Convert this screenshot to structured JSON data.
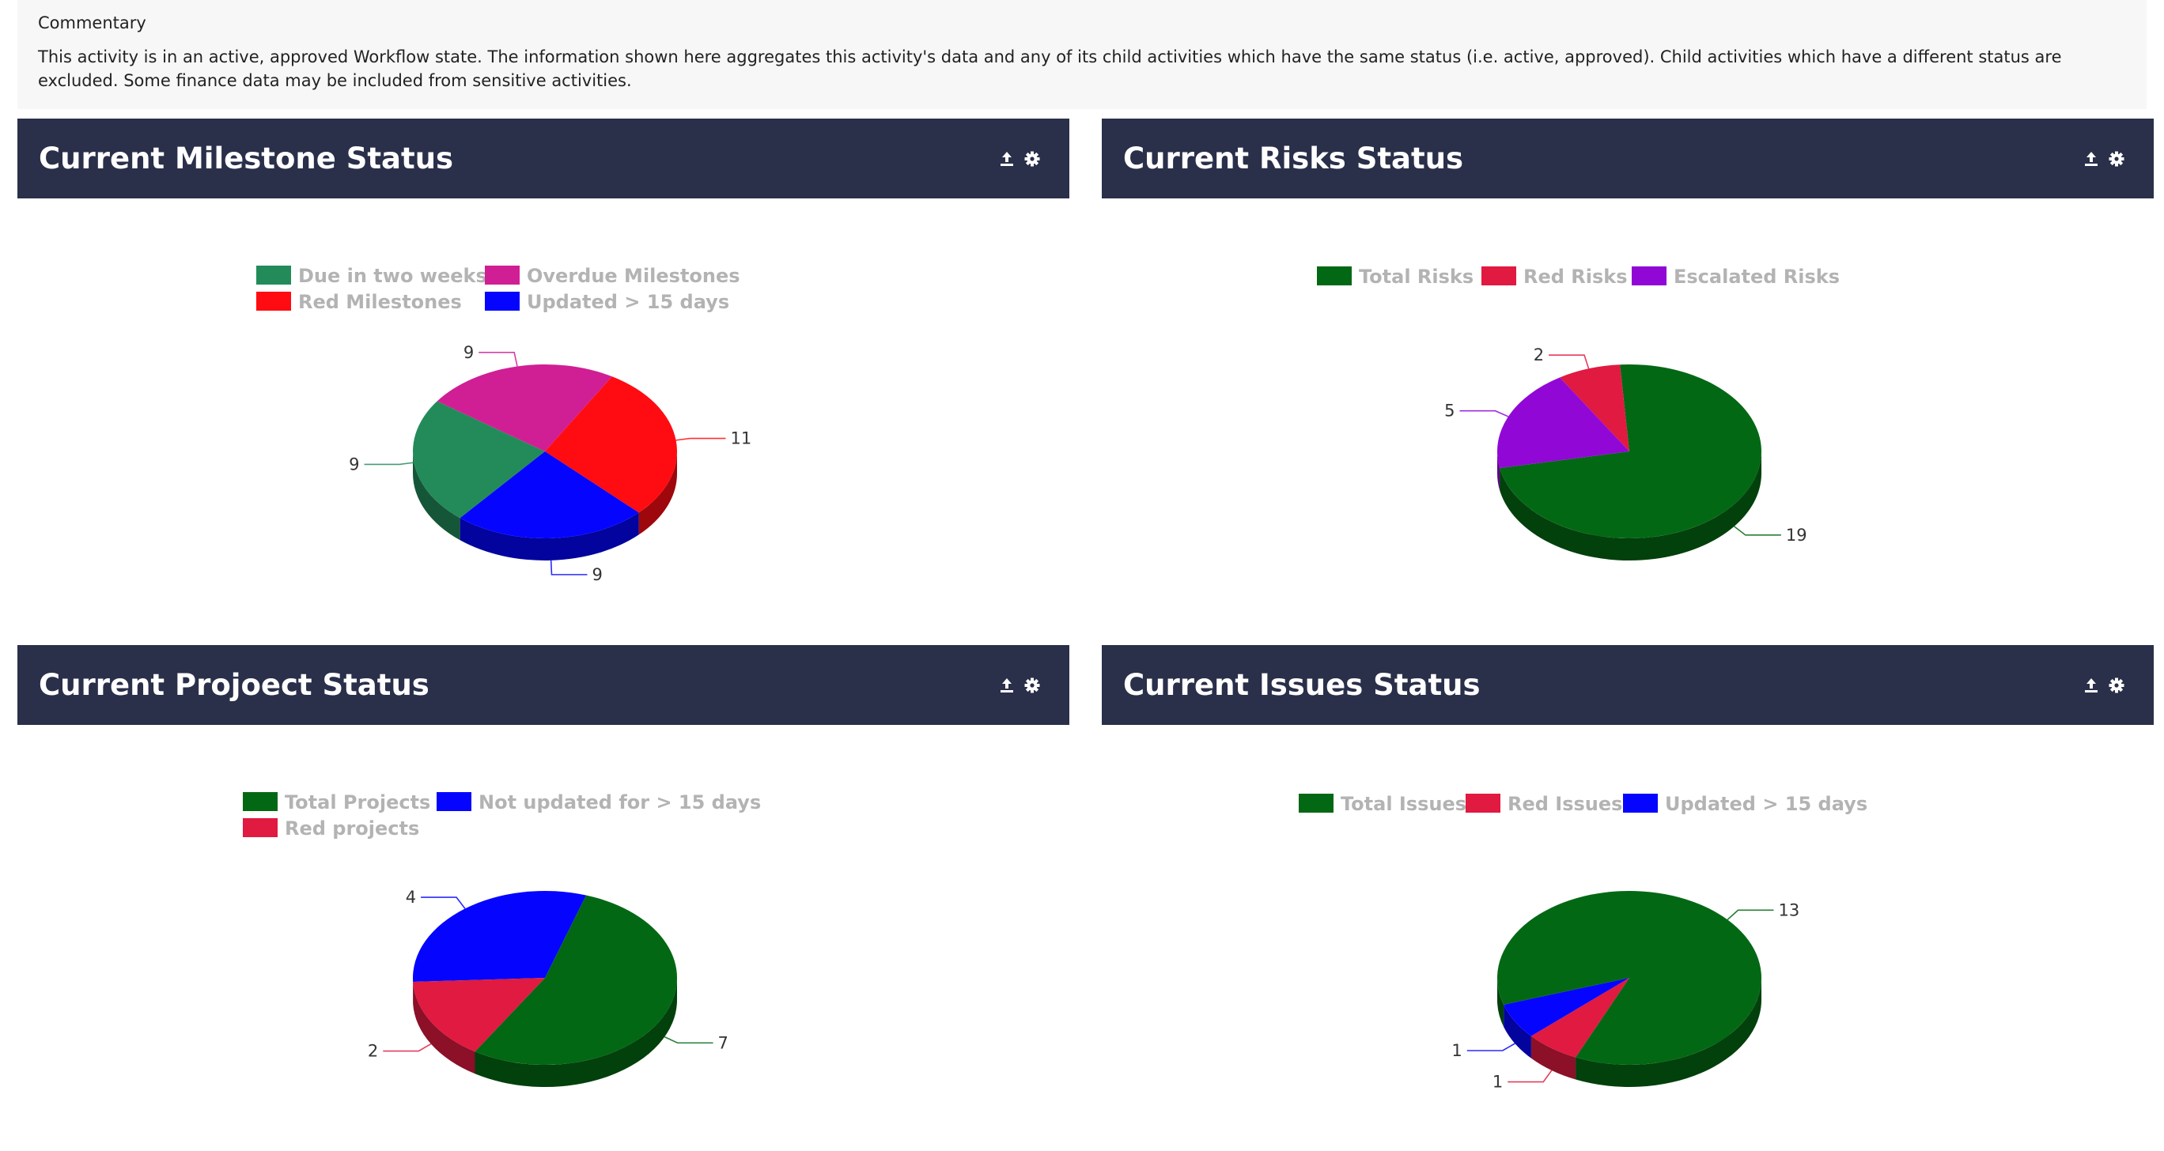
{
  "commentary": {
    "title": "Commentary",
    "text": "This activity is in an active, approved Workflow state. The information shown here aggregates this activity's data and any of its child activities which have the same status (i.e. active, approved). Child activities which have a different status are excluded. Some finance data may be included from sensitive activities."
  },
  "header_icons": [
    "upload-icon",
    "gear-icon"
  ],
  "chart_data": [
    {
      "id": "milestones",
      "title": "Current Milestone Status",
      "type": "pie",
      "legend_position": "top",
      "series": [
        {
          "name": "Due in two weeks",
          "value": 9,
          "color": "#238b5a"
        },
        {
          "name": "Overdue Milestones",
          "value": 9,
          "color": "#d01f94"
        },
        {
          "name": "Red Milestones",
          "value": 11,
          "color": "#ff0c12"
        },
        {
          "name": "Updated > 15 days",
          "value": 9,
          "color": "#0505ff"
        }
      ]
    },
    {
      "id": "risks",
      "title": "Current Risks Status",
      "type": "pie",
      "legend_position": "top",
      "series": [
        {
          "name": "Total Risks",
          "value": 19,
          "color": "#036814"
        },
        {
          "name": "Red Risks",
          "value": 2,
          "color": "#e01a40"
        },
        {
          "name": "Escalated Risks",
          "value": 5,
          "color": "#9108d6"
        }
      ]
    },
    {
      "id": "projects",
      "title": "Current Projoect Status",
      "type": "pie",
      "legend_position": "top",
      "series": [
        {
          "name": "Total Projects",
          "value": 7,
          "color": "#036814"
        },
        {
          "name": "Not updated for > 15 days",
          "value": 4,
          "color": "#0505ff"
        },
        {
          "name": "Red projects",
          "value": 2,
          "color": "#e01a40"
        }
      ]
    },
    {
      "id": "issues",
      "title": "Current Issues Status",
      "type": "pie",
      "legend_position": "top",
      "series": [
        {
          "name": "Total Issues",
          "value": 13,
          "color": "#036814"
        },
        {
          "name": "Red Issues",
          "value": 1,
          "color": "#e01a40"
        },
        {
          "name": "Updated > 15 days",
          "value": 1,
          "color": "#0505ff"
        }
      ]
    }
  ]
}
